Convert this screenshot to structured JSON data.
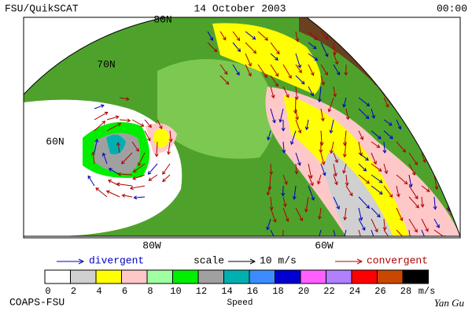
{
  "header": {
    "left": "FSU/QuikSCAT",
    "center": "14 October 2003",
    "right": "00:00"
  },
  "map": {
    "lat_labels": [
      "80N",
      "70N",
      "60N"
    ],
    "lon_labels": [
      "80W",
      "60W"
    ]
  },
  "legend": {
    "divergent": "divergent",
    "scale": "scale",
    "scale_value": "10 m/s",
    "convergent": "convergent"
  },
  "colorbar": {
    "ticks": [
      0,
      2,
      4,
      6,
      8,
      10,
      12,
      14,
      16,
      18,
      20,
      22,
      24,
      26,
      28
    ],
    "unit": "m/s",
    "label": "Speed",
    "colors": [
      "#ffffff",
      "#d0d0d0",
      "#ffff00",
      "#ffc8c8",
      "#a0ffa0",
      "#00ee00",
      "#a0a0a0",
      "#00b0b0",
      "#3c8cff",
      "#0000d0",
      "#ff60ff",
      "#b080ff",
      "#ff0000",
      "#c84800",
      "#000000"
    ]
  },
  "footer": {
    "left": "COAPS-FSU",
    "right": "Yan Gu"
  }
}
